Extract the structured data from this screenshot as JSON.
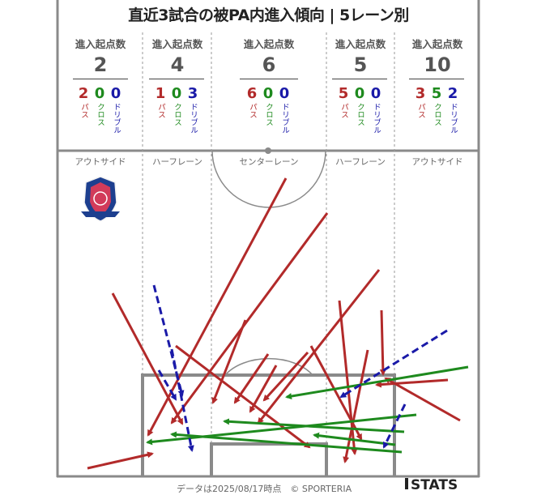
{
  "title": "直近3試合の被PA内進入傾向 | 5レーン別",
  "header_label": "進入起点数",
  "breakdown_labels": {
    "pass": "パス",
    "cross": "クロス",
    "dribble": "ドリブル"
  },
  "lanes": [
    {
      "zone": "アウトサイド",
      "total": "2",
      "pass": "2",
      "cross": "0",
      "dribble": "0"
    },
    {
      "zone": "ハーフレーン",
      "total": "4",
      "pass": "1",
      "cross": "0",
      "dribble": "3"
    },
    {
      "zone": "センターレーン",
      "total": "6",
      "pass": "6",
      "cross": "0",
      "dribble": "0"
    },
    {
      "zone": "ハーフレーン",
      "total": "5",
      "pass": "5",
      "cross": "0",
      "dribble": "0"
    },
    {
      "zone": "アウトサイド",
      "total": "10",
      "pass": "3",
      "cross": "5",
      "dribble": "2"
    }
  ],
  "colors": {
    "pass": "#b22a2a",
    "cross": "#1e8a1e",
    "dribble": "#1a1aa8",
    "pitch_line": "#8a8a8a"
  },
  "footer": "データは2025/08/17時点　© SPORTERIA",
  "brand": "STATS",
  "logo_icon": "club-crest-icon"
}
